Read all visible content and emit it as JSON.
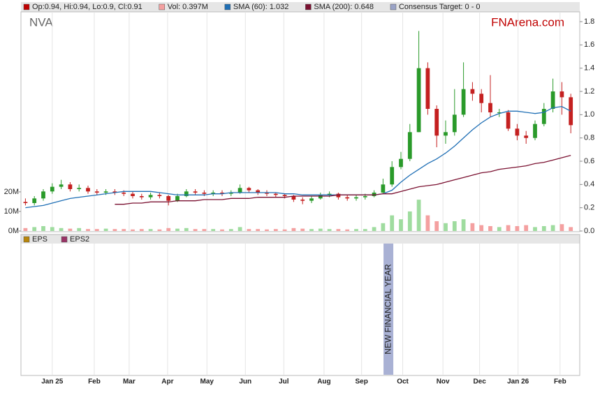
{
  "chart_data": {
    "type": "candlestick",
    "title": "NVA",
    "watermark": "FNArena.com",
    "x": [
      0,
      1,
      2,
      3,
      4,
      5,
      6,
      7,
      8,
      9,
      10,
      11,
      12,
      13,
      14,
      15,
      16,
      17,
      18,
      19,
      20,
      21,
      22,
      23,
      24,
      25,
      26,
      27,
      28,
      29,
      30,
      31,
      32,
      33,
      34,
      35,
      36,
      37,
      38,
      39,
      40,
      41,
      42,
      43,
      44,
      45,
      46,
      47,
      48,
      49,
      50,
      51,
      52,
      53,
      54,
      55,
      56,
      57,
      58,
      59,
      60,
      61
    ],
    "xlim": [
      -0.5,
      62
    ],
    "xticks": [
      {
        "value": 3.0,
        "label": "Jan 25"
      },
      {
        "value": 7.7,
        "label": "Feb"
      },
      {
        "value": 11.6,
        "label": "Mar"
      },
      {
        "value": 15.9,
        "label": "Apr"
      },
      {
        "value": 20.3,
        "label": "May"
      },
      {
        "value": 24.6,
        "label": "Jun"
      },
      {
        "value": 28.9,
        "label": "Jul"
      },
      {
        "value": 33.4,
        "label": "Aug"
      },
      {
        "value": 37.6,
        "label": "Sep"
      },
      {
        "value": 42.2,
        "label": "Oct"
      },
      {
        "value": 46.7,
        "label": "Nov"
      },
      {
        "value": 50.8,
        "label": "Dec"
      },
      {
        "value": 55.1,
        "label": "Jan 26"
      },
      {
        "value": 59.8,
        "label": "Feb"
      }
    ],
    "ylim": [
      0,
      1.8
    ],
    "yticks": [
      {
        "value": 0,
        "label": "0.0"
      },
      0.2,
      0.4,
      0.6,
      0.8,
      {
        "value": 1,
        "label": "1.0"
      },
      1.2,
      1.4,
      1.6,
      1.8
    ],
    "y2lim": [
      0,
      107
    ],
    "y2ticks": [
      {
        "value": 0,
        "label": "0M"
      },
      {
        "value": 10,
        "label": "10M"
      },
      {
        "value": 20,
        "label": "20M"
      }
    ],
    "up_color": "#2a9a2a",
    "down_color": "#c42020",
    "series": [
      {
        "name": "Op:0.94, Hi:0.94, Lo:0.9, Cl:0.91",
        "color": "#c00000",
        "open": [
          0.25,
          0.24,
          0.28,
          0.34,
          0.38,
          0.4,
          0.36,
          0.37,
          0.34,
          0.33,
          0.34,
          0.33,
          0.32,
          0.3,
          0.29,
          0.31,
          0.3,
          0.26,
          0.3,
          0.34,
          0.33,
          0.32,
          0.33,
          0.32,
          0.33,
          0.37,
          0.35,
          0.33,
          0.32,
          0.31,
          0.3,
          0.27,
          0.26,
          0.28,
          0.31,
          0.32,
          0.29,
          0.28,
          0.29,
          0.3,
          0.33,
          0.4,
          0.55,
          0.62,
          0.85,
          1.4,
          1.05,
          0.82,
          0.85,
          1.0,
          1.22,
          1.18,
          1.1,
          1.02,
          1.02,
          0.88,
          0.82,
          0.8,
          0.92,
          1.05,
          1.2,
          1.15
        ],
        "high": [
          0.28,
          0.3,
          0.36,
          0.41,
          0.44,
          0.42,
          0.4,
          0.39,
          0.36,
          0.36,
          0.36,
          0.35,
          0.34,
          0.32,
          0.33,
          0.33,
          0.31,
          0.32,
          0.36,
          0.36,
          0.35,
          0.35,
          0.35,
          0.35,
          0.4,
          0.38,
          0.36,
          0.35,
          0.33,
          0.32,
          0.31,
          0.29,
          0.3,
          0.33,
          0.34,
          0.33,
          0.31,
          0.31,
          0.32,
          0.35,
          0.45,
          0.6,
          0.68,
          0.92,
          1.72,
          1.45,
          1.08,
          0.95,
          1.22,
          1.45,
          1.28,
          1.22,
          1.34,
          1.05,
          1.04,
          0.92,
          0.86,
          0.95,
          1.1,
          1.31,
          1.28,
          1.18
        ],
        "low": [
          0.22,
          0.22,
          0.26,
          0.32,
          0.36,
          0.34,
          0.34,
          0.32,
          0.31,
          0.31,
          0.31,
          0.3,
          0.28,
          0.27,
          0.27,
          0.28,
          0.22,
          0.25,
          0.29,
          0.31,
          0.3,
          0.3,
          0.3,
          0.3,
          0.32,
          0.33,
          0.31,
          0.3,
          0.29,
          0.28,
          0.25,
          0.23,
          0.24,
          0.27,
          0.29,
          0.27,
          0.26,
          0.26,
          0.27,
          0.29,
          0.32,
          0.38,
          0.53,
          0.6,
          0.85,
          1.0,
          0.72,
          0.75,
          0.82,
          0.98,
          1.12,
          1.02,
          0.98,
          0.98,
          0.86,
          0.78,
          0.75,
          0.78,
          0.9,
          1.02,
          1.0,
          0.84
        ],
        "close": [
          0.24,
          0.28,
          0.34,
          0.38,
          0.4,
          0.36,
          0.37,
          0.34,
          0.33,
          0.34,
          0.33,
          0.32,
          0.3,
          0.29,
          0.31,
          0.3,
          0.26,
          0.3,
          0.34,
          0.33,
          0.32,
          0.33,
          0.32,
          0.33,
          0.37,
          0.35,
          0.33,
          0.32,
          0.31,
          0.3,
          0.27,
          0.26,
          0.28,
          0.31,
          0.32,
          0.29,
          0.28,
          0.29,
          0.3,
          0.33,
          0.4,
          0.55,
          0.62,
          0.85,
          1.4,
          1.05,
          0.82,
          0.85,
          1.0,
          1.22,
          1.18,
          1.1,
          1.02,
          1.02,
          0.88,
          0.82,
          0.8,
          0.92,
          1.05,
          1.2,
          1.15,
          0.91
        ]
      },
      {
        "name": "Vol: 0.397M",
        "color": "#f4a0a0",
        "axis": "y2",
        "values": [
          1.5,
          2,
          2.5,
          2,
          1.5,
          1.2,
          1.5,
          1,
          1,
          1.2,
          1,
          1,
          0.8,
          1,
          1,
          0.8,
          1.5,
          1.2,
          1.5,
          1,
          1,
          1,
          0.8,
          1,
          2,
          1,
          1,
          0.8,
          1,
          0.8,
          1.5,
          1.2,
          1,
          1.2,
          1,
          1,
          0.8,
          1,
          1,
          2,
          4,
          8,
          6,
          10,
          16,
          8,
          5,
          4,
          5,
          6,
          4,
          3,
          2.5,
          2,
          3,
          2.5,
          3,
          2,
          2.5,
          3,
          3.5,
          2
        ]
      },
      {
        "name": "SMA (60): 1.032",
        "color": "#1f6fb5",
        "values": [
          0.2,
          0.21,
          0.22,
          0.24,
          0.26,
          0.28,
          0.29,
          0.3,
          0.31,
          0.32,
          0.33,
          0.34,
          0.34,
          0.34,
          0.34,
          0.33,
          0.32,
          0.31,
          0.31,
          0.31,
          0.31,
          0.32,
          0.32,
          0.33,
          0.33,
          0.33,
          0.33,
          0.33,
          0.33,
          0.32,
          0.32,
          0.31,
          0.31,
          0.31,
          0.31,
          0.31,
          0.31,
          0.31,
          0.31,
          0.31,
          0.32,
          0.35,
          0.42,
          0.48,
          0.53,
          0.58,
          0.62,
          0.67,
          0.73,
          0.8,
          0.87,
          0.93,
          0.98,
          1.01,
          1.03,
          1.03,
          1.02,
          1.01,
          1.02,
          1.06,
          1.07,
          1.03
        ]
      },
      {
        "name": "SMA (200): 0.648",
        "color": "#7a1030",
        "values": [
          null,
          null,
          null,
          null,
          null,
          null,
          null,
          null,
          null,
          null,
          0.23,
          0.23,
          0.24,
          0.24,
          0.25,
          0.25,
          0.25,
          0.26,
          0.26,
          0.26,
          0.27,
          0.27,
          0.27,
          0.28,
          0.28,
          0.28,
          0.29,
          0.29,
          0.29,
          0.29,
          0.3,
          0.3,
          0.3,
          0.3,
          0.3,
          0.31,
          0.31,
          0.31,
          0.31,
          0.31,
          0.32,
          0.32,
          0.34,
          0.36,
          0.38,
          0.39,
          0.4,
          0.42,
          0.44,
          0.46,
          0.48,
          0.5,
          0.51,
          0.53,
          0.54,
          0.55,
          0.56,
          0.58,
          0.59,
          0.61,
          0.63,
          0.65
        ]
      },
      {
        "name": "Consensus Target: 0 - 0",
        "color": "#9aa3c7"
      }
    ],
    "lower_panel": {
      "legend": [
        {
          "name": "EPS",
          "color": "#b8860b"
        },
        {
          "name": "EPS2",
          "color": "#993366"
        }
      ],
      "annotation": {
        "text": "NEW FINANCIAL YEAR",
        "x": 40.6,
        "color": "#a9b1d4"
      }
    }
  }
}
